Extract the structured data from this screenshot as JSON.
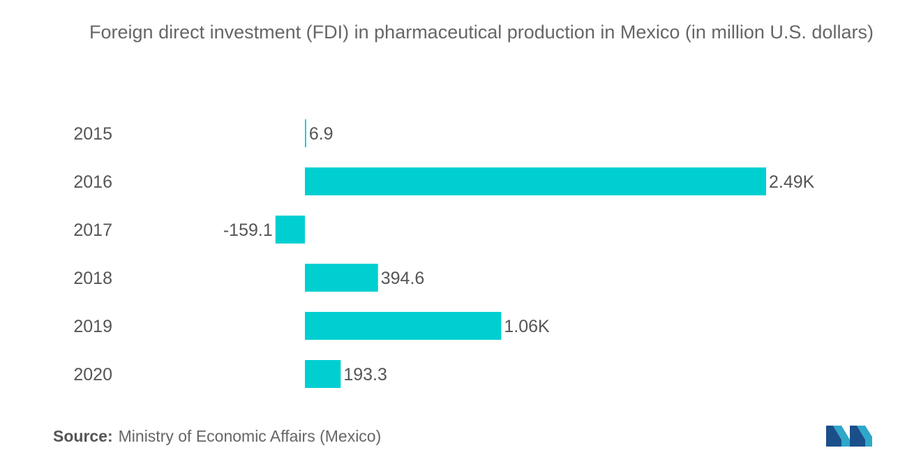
{
  "title": "Foreign direct investment (FDI) in pharmaceutical production in Mexico (in million U.S. dollars)",
  "source_label": "Source:",
  "source_text": "Ministry of Economic Affairs (Mexico)",
  "colors": {
    "bar": "#00cfd1",
    "text": "#555555"
  },
  "logo_icon": "mordor-intelligence-logo",
  "chart_data": {
    "type": "bar",
    "orientation": "horizontal",
    "categories": [
      "2015",
      "2016",
      "2017",
      "2018",
      "2019",
      "2020"
    ],
    "values": [
      6.9,
      2490,
      -159.1,
      394.6,
      1060,
      193.3
    ],
    "data_labels": [
      "6.9",
      "2.49K",
      "-159.1",
      "394.6",
      "1.06K",
      "193.3"
    ],
    "title": "Foreign direct investment (FDI) in pharmaceutical production in Mexico (in million U.S. dollars)",
    "xlabel": "",
    "ylabel": "",
    "xlim": [
      -159.1,
      2490
    ],
    "grid": false,
    "legend": "none"
  }
}
